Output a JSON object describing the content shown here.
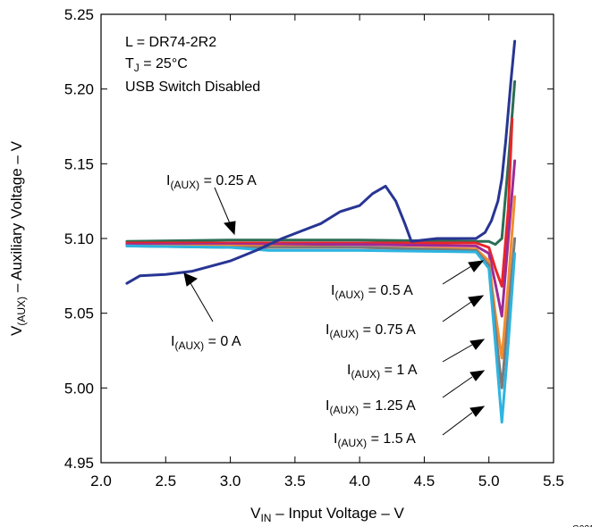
{
  "chart_data": {
    "type": "line",
    "xlabel": {
      "main": "V",
      "sub": "IN",
      "rest": " – Input Voltage – V"
    },
    "ylabel": {
      "main": "V",
      "sub": "(AUX)",
      "rest": " – Auxiliary Voltage – V"
    },
    "xlim": [
      2.0,
      5.5
    ],
    "ylim": [
      4.95,
      5.25
    ],
    "xticks": [
      "2.0",
      "2.5",
      "3.0",
      "3.5",
      "4.0",
      "4.5",
      "5.0",
      "5.5"
    ],
    "yticks": [
      "4.95",
      "5.00",
      "5.05",
      "5.10",
      "5.15",
      "5.20",
      "5.25"
    ],
    "grid": false,
    "figure_id": "G021",
    "conditions": {
      "inductor": "L = DR74-2R2",
      "temp_main": "T",
      "temp_sub": "J",
      "temp_rest": " = 25°C",
      "switch": "USB Switch Disabled"
    },
    "annotations": [
      {
        "id": "0",
        "main": "I",
        "sub": "(AUX)",
        "rest": " = 0 A"
      },
      {
        "id": "0.25",
        "main": "I",
        "sub": "(AUX)",
        "rest": " = 0.25 A"
      },
      {
        "id": "0.5",
        "main": "I",
        "sub": "(AUX)",
        "rest": " = 0.5 A"
      },
      {
        "id": "0.75",
        "main": "I",
        "sub": "(AUX)",
        "rest": " = 0.75 A"
      },
      {
        "id": "1",
        "main": "I",
        "sub": "(AUX)",
        "rest": " = 1 A"
      },
      {
        "id": "1.25",
        "main": "I",
        "sub": "(AUX)",
        "rest": " = 1.25 A"
      },
      {
        "id": "1.5",
        "main": "I",
        "sub": "(AUX)",
        "rest": " = 1.5 A"
      }
    ],
    "series": [
      {
        "color": "#2b6e55",
        "x": [
          2.2,
          3.0,
          4.0,
          4.9,
          5.0,
          5.05,
          5.1,
          5.15,
          5.2
        ],
        "y": [
          5.098,
          5.099,
          5.099,
          5.098,
          5.098,
          5.096,
          5.1,
          5.15,
          5.205
        ]
      },
      {
        "color": "#e8252a",
        "x": [
          2.2,
          3.0,
          4.0,
          4.9,
          5.0,
          5.05,
          5.1,
          5.15,
          5.18
        ],
        "y": [
          5.097,
          5.097,
          5.097,
          5.097,
          5.094,
          5.08,
          5.068,
          5.12,
          5.18
        ]
      },
      {
        "color": "#9c2b96",
        "x": [
          2.2,
          3.0,
          4.0,
          4.9,
          5.0,
          5.05,
          5.1,
          5.15,
          5.2
        ],
        "y": [
          5.096,
          5.096,
          5.096,
          5.095,
          5.09,
          5.07,
          5.048,
          5.1,
          5.152
        ]
      },
      {
        "color": "#f18d2e",
        "x": [
          2.2,
          3.0,
          4.0,
          4.9,
          5.0,
          5.05,
          5.1,
          5.15,
          5.2
        ],
        "y": [
          5.095,
          5.095,
          5.094,
          5.093,
          5.085,
          5.05,
          5.02,
          5.07,
          5.128
        ]
      },
      {
        "color": "#7a7a7a",
        "x": [
          2.2,
          3.0,
          4.0,
          4.9,
          5.0,
          5.05,
          5.1,
          5.15,
          5.2
        ],
        "y": [
          5.095,
          5.094,
          5.094,
          5.092,
          5.082,
          5.04,
          5.0,
          5.05,
          5.1
        ]
      },
      {
        "color": "#2eb4e0",
        "x": [
          2.2,
          3.0,
          3.3,
          4.0,
          4.9,
          5.0,
          5.05,
          5.1,
          5.15,
          5.2
        ],
        "y": [
          5.095,
          5.094,
          5.092,
          5.092,
          5.091,
          5.08,
          5.03,
          4.977,
          5.03,
          5.09
        ]
      },
      {
        "color": "#283593",
        "x": [
          2.2,
          2.3,
          2.5,
          2.7,
          3.0,
          3.2,
          3.4,
          3.55,
          3.7,
          3.85,
          4.0,
          4.1,
          4.2,
          4.28,
          4.35,
          4.4,
          4.6,
          4.9,
          4.97,
          5.02,
          5.07,
          5.1,
          5.13,
          5.17,
          5.2
        ],
        "y": [
          5.07,
          5.075,
          5.076,
          5.078,
          5.085,
          5.092,
          5.1,
          5.105,
          5.11,
          5.118,
          5.122,
          5.13,
          5.135,
          5.125,
          5.11,
          5.098,
          5.1,
          5.1,
          5.104,
          5.112,
          5.125,
          5.14,
          5.165,
          5.205,
          5.232
        ]
      }
    ]
  }
}
